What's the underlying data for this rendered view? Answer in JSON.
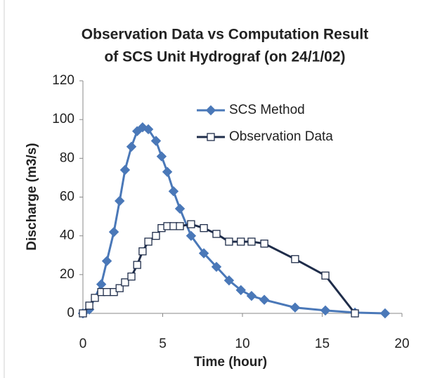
{
  "chart_data": {
    "type": "line",
    "title": [
      "Observation Data vs Computation Result",
      "of SCS Unit Hydrograf  (on 24/1/02)"
    ],
    "x_label": "Time (hour)",
    "y_label": "Discharge (m3/s)",
    "xlim": [
      0,
      20
    ],
    "xticks": [
      0,
      5,
      10,
      15,
      20
    ],
    "ylim": [
      0,
      120
    ],
    "yticks": [
      0,
      20,
      40,
      60,
      80,
      100,
      120
    ],
    "legend": "upper right",
    "series": [
      {
        "name": "SCS Method",
        "color": "#4a78b8",
        "marker": "diamond",
        "x": [
          0,
          0.4,
          1.15,
          1.5,
          1.94,
          2.3,
          2.64,
          3.04,
          3.4,
          3.74,
          4.1,
          4.58,
          4.93,
          5.29,
          5.68,
          6.08,
          6.78,
          7.58,
          8.37,
          9.16,
          9.9,
          10.57,
          11.37,
          13.3,
          15.2,
          17.05,
          18.94
        ],
        "values": [
          0,
          2,
          15,
          27,
          42,
          58,
          74,
          86,
          94,
          96,
          95,
          89,
          81,
          73,
          63,
          54,
          40,
          31,
          24,
          17,
          12,
          9,
          7,
          3,
          1.5,
          0.4,
          0
        ]
      },
      {
        "name": "Observation Data",
        "color": "#1f2d4a",
        "marker": "square",
        "x": [
          0,
          0.4,
          0.75,
          1.15,
          1.5,
          1.94,
          2.3,
          2.64,
          3.04,
          3.4,
          3.74,
          4.1,
          4.58,
          4.93,
          5.29,
          5.68,
          6.08,
          6.78,
          7.58,
          8.37,
          9.16,
          9.9,
          10.57,
          11.37,
          13.3,
          15.2,
          17.05
        ],
        "values": [
          0,
          4,
          8,
          11,
          11,
          11,
          13,
          16,
          19,
          25,
          32,
          37,
          40,
          44,
          45,
          45,
          45,
          46,
          44,
          41,
          37,
          37,
          37,
          36,
          28,
          19.5,
          0
        ]
      }
    ]
  }
}
